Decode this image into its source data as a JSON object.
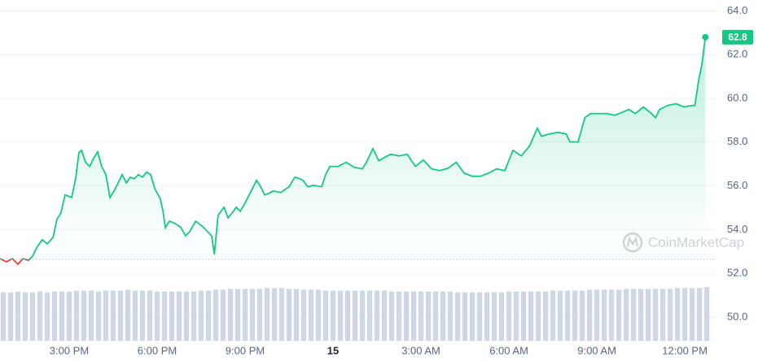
{
  "chart_data": {
    "type": "area",
    "x": [
      12.64,
      12.86,
      13.06,
      13.25,
      13.42,
      13.61,
      13.75,
      13.89,
      14.08,
      14.25,
      14.45,
      14.58,
      14.72,
      14.86,
      15.08,
      15.22,
      15.33,
      15.42,
      15.56,
      15.7,
      15.83,
      15.97,
      16.11,
      16.25,
      16.39,
      16.53,
      16.67,
      16.81,
      16.95,
      17.08,
      17.22,
      17.36,
      17.5,
      17.64,
      17.78,
      17.92,
      18.11,
      18.2,
      18.28,
      18.42,
      18.61,
      18.81,
      18.97,
      19.11,
      19.31,
      19.53,
      19.72,
      19.86,
      19.95,
      20.08,
      20.28,
      20.42,
      20.56,
      20.7,
      20.83,
      20.97,
      21.25,
      21.39,
      21.53,
      21.67,
      21.81,
      21.95,
      22.22,
      22.5,
      22.7,
      22.86,
      22.97,
      23.14,
      23.33,
      23.61,
      23.75,
      23.89,
      24.17,
      24.45,
      24.72,
      25.0,
      25.14,
      25.36,
      25.56,
      25.7,
      25.97,
      26.25,
      26.53,
      26.81,
      27.08,
      27.36,
      27.64,
      27.92,
      28.2,
      28.47,
      28.75,
      29.03,
      29.31,
      29.58,
      29.86,
      30.14,
      30.42,
      30.7,
      30.97,
      31.11,
      31.39,
      31.67,
      31.95,
      32.08,
      32.36,
      32.59,
      32.78,
      33.06,
      33.34,
      33.61,
      33.89,
      34.09,
      34.31,
      34.59,
      34.86,
      35.0,
      35.14,
      35.42,
      35.7,
      35.97,
      36.25,
      36.34,
      36.47,
      36.58,
      36.7
    ],
    "values": [
      52.68,
      52.53,
      52.68,
      52.42,
      52.68,
      52.6,
      52.79,
      53.17,
      53.54,
      53.35,
      53.65,
      54.47,
      54.77,
      55.59,
      55.47,
      56.33,
      57.52,
      57.63,
      57.08,
      56.89,
      57.26,
      57.56,
      56.89,
      56.52,
      55.47,
      55.77,
      56.14,
      56.52,
      56.14,
      56.4,
      56.33,
      56.52,
      56.4,
      56.63,
      56.52,
      55.88,
      55.4,
      54.84,
      54.1,
      54.39,
      54.28,
      54.1,
      53.72,
      53.91,
      54.39,
      54.17,
      53.91,
      53.72,
      52.87,
      54.66,
      55.03,
      54.54,
      54.77,
      55.03,
      54.84,
      55.14,
      55.88,
      56.26,
      55.96,
      55.59,
      55.66,
      55.77,
      55.7,
      55.96,
      56.4,
      56.33,
      56.26,
      55.96,
      56.03,
      55.96,
      56.52,
      56.89,
      56.89,
      57.08,
      56.85,
      56.78,
      57.08,
      57.71,
      57.15,
      57.26,
      57.45,
      57.37,
      57.45,
      56.89,
      57.19,
      56.78,
      56.7,
      56.81,
      57.08,
      56.59,
      56.44,
      56.44,
      56.59,
      56.78,
      56.7,
      57.63,
      57.37,
      57.82,
      58.64,
      58.27,
      58.38,
      58.45,
      58.38,
      58.01,
      58.01,
      59.12,
      59.31,
      59.31,
      59.31,
      59.23,
      59.38,
      59.5,
      59.31,
      59.61,
      59.31,
      59.12,
      59.5,
      59.68,
      59.76,
      59.61,
      59.68,
      59.68,
      60.8,
      61.54,
      62.8
    ],
    "color": "#16c784",
    "below_color": "#ea3943",
    "baseline": 52.65,
    "xlim": [
      12.64,
      37.08
    ],
    "xticks": [
      {
        "value": 15,
        "label": "3:00 PM"
      },
      {
        "value": 18,
        "label": "6:00 PM"
      },
      {
        "value": 21,
        "label": "9:00 PM"
      },
      {
        "value": 24,
        "label": "15"
      },
      {
        "value": 27,
        "label": "3:00 AM"
      },
      {
        "value": 30,
        "label": "6:00 AM"
      },
      {
        "value": 33,
        "label": "9:00 AM"
      },
      {
        "value": 36,
        "label": "12:00 PM"
      }
    ],
    "ylim": [
      48.9,
      64.5
    ],
    "yticks": [
      {
        "value": 50,
        "label": "50.0"
      },
      {
        "value": 52,
        "label": "52.0"
      },
      {
        "value": 54,
        "label": "54.0"
      },
      {
        "value": 56,
        "label": "56.0"
      },
      {
        "value": 58,
        "label": "58.0"
      },
      {
        "value": 60,
        "label": "60.0"
      },
      {
        "value": 62,
        "label": "62.0"
      },
      {
        "value": 64,
        "label": "64.0"
      }
    ],
    "grid": true,
    "watermark": "CoinMarketCap",
    "volume": {
      "color": "#cfd6e4",
      "x": [
        12.75,
        13,
        13.25,
        13.5,
        13.75,
        14,
        14.25,
        14.5,
        14.75,
        15,
        15.25,
        15.5,
        15.75,
        16,
        16.25,
        16.5,
        16.75,
        17,
        17.25,
        17.5,
        17.75,
        18,
        18.25,
        18.5,
        18.75,
        19,
        19.25,
        19.5,
        19.75,
        20,
        20.25,
        20.5,
        20.75,
        21,
        21.25,
        21.5,
        21.75,
        22,
        22.25,
        22.5,
        22.75,
        23,
        23.25,
        23.5,
        23.75,
        24,
        24.25,
        24.5,
        24.75,
        25,
        25.25,
        25.5,
        25.75,
        26,
        26.25,
        26.5,
        26.75,
        27,
        27.25,
        27.5,
        27.75,
        28,
        28.25,
        28.5,
        28.75,
        29,
        29.25,
        29.5,
        29.75,
        30,
        30.25,
        30.5,
        30.75,
        31,
        31.25,
        31.5,
        31.75,
        32,
        32.25,
        32.5,
        32.75,
        33,
        33.25,
        33.5,
        33.75,
        34,
        34.25,
        34.5,
        34.75,
        35,
        35.25,
        35.5,
        35.75,
        36,
        36.25,
        36.5,
        36.75
      ],
      "values": [
        56,
        56,
        57,
        56,
        56,
        57,
        56,
        57,
        57,
        57,
        58,
        58,
        58,
        57,
        58,
        58,
        58,
        59,
        58,
        58,
        58,
        57,
        57,
        57,
        57,
        57,
        57,
        58,
        58,
        59,
        59,
        60,
        60,
        60,
        60,
        60,
        61,
        61,
        61,
        60,
        60,
        59,
        59,
        59,
        58,
        58,
        58,
        58,
        58,
        58,
        58,
        58,
        58,
        57,
        57,
        57,
        57,
        57,
        57,
        57,
        57,
        57,
        56,
        56,
        56,
        56,
        56,
        56,
        56,
        57,
        57,
        57,
        57,
        57,
        57,
        58,
        58,
        58,
        58,
        58,
        59,
        59,
        59,
        59,
        59,
        60,
        60,
        60,
        60,
        60,
        60,
        60,
        61,
        61,
        61,
        61,
        62
      ]
    }
  }
}
